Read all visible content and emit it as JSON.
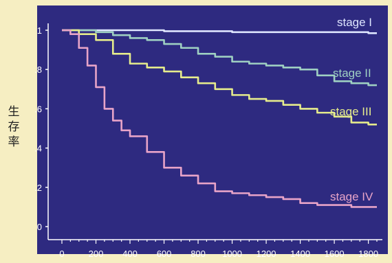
{
  "chart_data": {
    "type": "line",
    "title": "",
    "xlabel": "",
    "ylabel": "生存率",
    "xlim": [
      0,
      1850
    ],
    "ylim": [
      0,
      1
    ],
    "xticks": [
      0,
      200,
      400,
      600,
      800,
      1000,
      1200,
      1400,
      1600,
      1800
    ],
    "yticks": [
      {
        "value": 1,
        "label": "1"
      },
      {
        "value": 0.8,
        "label": ".8"
      },
      {
        "value": 0.6,
        "label": ".6"
      },
      {
        "value": 0.4,
        "label": ".4"
      },
      {
        "value": 0.2,
        "label": ".2"
      },
      {
        "value": 0,
        "label": "0"
      }
    ],
    "grid": false,
    "series": [
      {
        "name": "stage I",
        "color": "#dfe6ff",
        "x": [
          0,
          200,
          600,
          1000,
          1400,
          1800,
          1850
        ],
        "y": [
          1.0,
          1.0,
          0.995,
          0.99,
          0.99,
          0.985,
          0.985
        ]
      },
      {
        "name": "stage II",
        "color": "#9fd0c2",
        "x": [
          0,
          100,
          200,
          300,
          400,
          500,
          600,
          700,
          800,
          900,
          1000,
          1100,
          1200,
          1300,
          1400,
          1500,
          1600,
          1700,
          1800,
          1850
        ],
        "y": [
          1.0,
          1.0,
          0.99,
          0.975,
          0.96,
          0.95,
          0.93,
          0.91,
          0.88,
          0.865,
          0.84,
          0.83,
          0.82,
          0.81,
          0.8,
          0.77,
          0.74,
          0.73,
          0.72,
          0.72
        ]
      },
      {
        "name": "stage III",
        "color": "#e6ec8c",
        "x": [
          0,
          100,
          200,
          300,
          400,
          500,
          600,
          700,
          800,
          900,
          1000,
          1100,
          1200,
          1300,
          1400,
          1500,
          1600,
          1700,
          1800,
          1850
        ],
        "y": [
          1.0,
          0.98,
          0.95,
          0.88,
          0.83,
          0.81,
          0.79,
          0.76,
          0.73,
          0.7,
          0.67,
          0.65,
          0.64,
          0.62,
          0.6,
          0.58,
          0.56,
          0.53,
          0.52,
          0.52
        ]
      },
      {
        "name": "stage IV",
        "color": "#e8a4c8",
        "x": [
          0,
          50,
          100,
          150,
          200,
          250,
          300,
          350,
          400,
          500,
          600,
          700,
          800,
          900,
          1000,
          1100,
          1200,
          1300,
          1400,
          1500,
          1600,
          1700,
          1800,
          1850
        ],
        "y": [
          1.0,
          0.98,
          0.91,
          0.82,
          0.71,
          0.6,
          0.54,
          0.49,
          0.46,
          0.38,
          0.3,
          0.26,
          0.22,
          0.18,
          0.17,
          0.16,
          0.15,
          0.14,
          0.12,
          0.11,
          0.11,
          0.1,
          0.1,
          0.1
        ]
      }
    ]
  }
}
